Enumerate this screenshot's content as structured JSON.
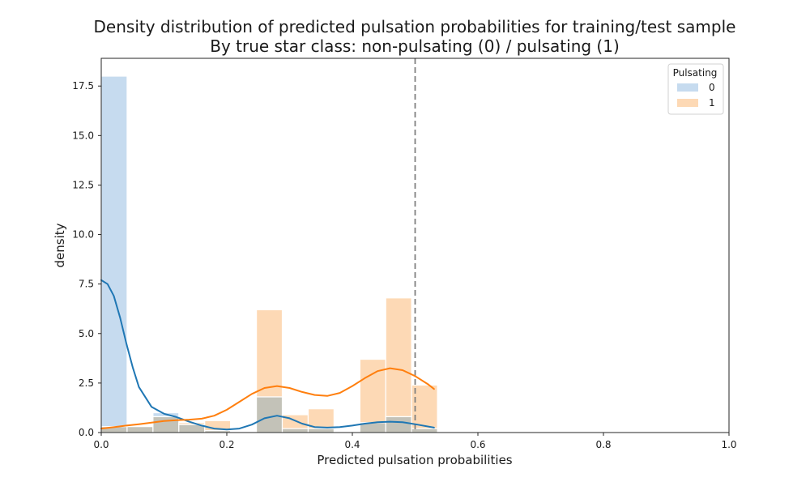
{
  "chart_data": {
    "type": "bar",
    "title": "Density distribution of predicted pulsation probabilities for training/test sample",
    "subtitle": "By true star class: non-pulsating (0) / pulsating (1)",
    "xlabel": "Predicted pulsation probabilities",
    "ylabel": "density",
    "xlim": [
      0,
      1.0
    ],
    "ylim": [
      0,
      18.9
    ],
    "xticks": [
      "0.0",
      "0.2",
      "0.4",
      "0.6",
      "0.8",
      "1.0"
    ],
    "yticks": [
      "0.0",
      "2.5",
      "5.0",
      "7.5",
      "10.0",
      "12.5",
      "15.0",
      "17.5"
    ],
    "grid": false,
    "legend": {
      "title": "Pulsating",
      "placement": "top-right"
    },
    "threshold": 0.5,
    "bin_width": 0.0412,
    "bin_starts": [
      0,
      0.0412,
      0.0824,
      0.1236,
      0.1648,
      0.206,
      0.2472,
      0.2884,
      0.3296,
      0.3708,
      0.412,
      0.4532,
      0.4944
    ],
    "colors": {
      "bar_0": "#c6dbef",
      "bar_1": "#fdd9b5",
      "overlap": "#c3c2b8",
      "line_0": "#1f77b4",
      "line_1": "#ff7f0e",
      "threshold": "#808080"
    },
    "series": [
      {
        "name": "0",
        "values": [
          18.0,
          0.3,
          1.0,
          0.4,
          0.1,
          0,
          1.8,
          0.2,
          0.2,
          0,
          0.5,
          0.8,
          0.2
        ],
        "kde": {
          "x": [
            0,
            0.01,
            0.02,
            0.03,
            0.04,
            0.05,
            0.06,
            0.08,
            0.1,
            0.12,
            0.14,
            0.16,
            0.18,
            0.2,
            0.22,
            0.24,
            0.26,
            0.28,
            0.3,
            0.32,
            0.34,
            0.36,
            0.38,
            0.4,
            0.42,
            0.44,
            0.46,
            0.48,
            0.5,
            0.53
          ],
          "y": [
            7.7,
            7.5,
            6.9,
            5.8,
            4.5,
            3.3,
            2.3,
            1.3,
            0.95,
            0.78,
            0.55,
            0.35,
            0.2,
            0.15,
            0.2,
            0.4,
            0.72,
            0.85,
            0.72,
            0.45,
            0.28,
            0.25,
            0.28,
            0.35,
            0.45,
            0.52,
            0.55,
            0.52,
            0.42,
            0.25
          ]
        }
      },
      {
        "name": "1",
        "values": [
          0.3,
          0.3,
          0.8,
          0.5,
          0.6,
          0,
          6.2,
          0.9,
          1.2,
          0,
          3.7,
          6.8,
          2.4
        ],
        "kde": {
          "x": [
            0,
            0.02,
            0.04,
            0.06,
            0.08,
            0.1,
            0.12,
            0.14,
            0.16,
            0.18,
            0.2,
            0.22,
            0.24,
            0.26,
            0.28,
            0.3,
            0.32,
            0.34,
            0.36,
            0.38,
            0.4,
            0.42,
            0.44,
            0.46,
            0.48,
            0.5,
            0.52,
            0.53
          ],
          "y": [
            0.2,
            0.27,
            0.35,
            0.42,
            0.5,
            0.58,
            0.62,
            0.65,
            0.7,
            0.85,
            1.15,
            1.55,
            1.95,
            2.25,
            2.35,
            2.25,
            2.05,
            1.9,
            1.85,
            2.0,
            2.35,
            2.75,
            3.1,
            3.25,
            3.15,
            2.85,
            2.45,
            2.2
          ]
        }
      }
    ]
  }
}
